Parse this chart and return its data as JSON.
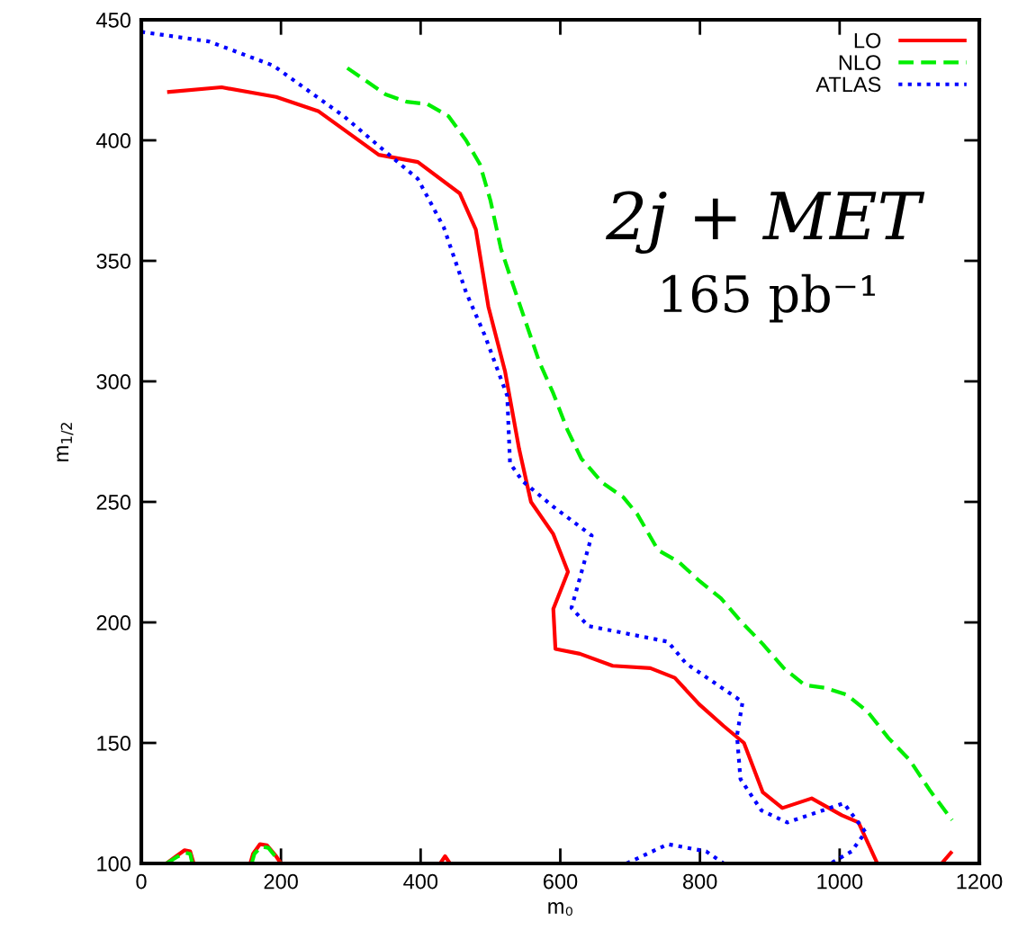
{
  "chart_data": {
    "type": "line",
    "xlabel": "m₀",
    "ylabel": "m$_{1/2}$",
    "xlim": [
      0,
      1200
    ],
    "ylim": [
      100,
      450
    ],
    "xticks": [
      0,
      200,
      400,
      600,
      800,
      1000,
      1200
    ],
    "yticks": [
      100,
      150,
      200,
      250,
      300,
      350,
      400,
      450
    ],
    "grid": false,
    "legend": "top right",
    "marker": "none",
    "annotations": [
      "2j + MET",
      "165 pb⁻¹"
    ],
    "series": [
      {
        "name": "LO",
        "color": "#ff0000",
        "line_style": "solid",
        "x": [
          37,
          115,
          193,
          254,
          340,
          396,
          456,
          479,
          497,
          521,
          541,
          558,
          590,
          611,
          590,
          593,
          628,
          675,
          729,
          764,
          799,
          834,
          863,
          890,
          918,
          960,
          1003,
          1027,
          1054,
          null,
          1146,
          1161,
          null,
          36,
          50,
          62,
          70,
          75,
          null,
          156,
          160,
          170,
          180,
          193,
          200,
          null,
          428,
          435,
          442
        ],
        "values": [
          420,
          422,
          418,
          412,
          394,
          391,
          378,
          363,
          331,
          304,
          272,
          250,
          236.6,
          221,
          205.6,
          189,
          187,
          182,
          181,
          177,
          166,
          157,
          150,
          129.5,
          123,
          127,
          120,
          117,
          100,
          null,
          100,
          105,
          null,
          100,
          103,
          105.5,
          105,
          100,
          null,
          100,
          104,
          108,
          107.5,
          103,
          100,
          null,
          100,
          103,
          100
        ]
      },
      {
        "name": "NLO",
        "color": "#00ee00",
        "line_style": "dashed",
        "x": [
          295,
          320,
          350,
          380,
          410,
          440,
          465,
          485,
          500,
          515,
          530,
          550,
          570,
          590,
          610,
          630,
          660,
          690,
          710,
          740,
          770,
          800,
          830,
          860,
          890,
          920,
          950,
          980,
          1010,
          1040,
          1070,
          1100,
          1130,
          1161,
          null,
          36,
          50,
          62,
          70,
          73,
          null,
          158,
          162,
          172,
          182,
          193,
          198
        ],
        "values": [
          430,
          425,
          419,
          416,
          415,
          410,
          400,
          390,
          375,
          355,
          342,
          325,
          308,
          295,
          280,
          268,
          258,
          252,
          245,
          230,
          225,
          217,
          210,
          200,
          191,
          181,
          174,
          172.8,
          170,
          163,
          152,
          143,
          130,
          118,
          null,
          100,
          102.5,
          104.5,
          104,
          100,
          null,
          100,
          104,
          107,
          106.5,
          102.5,
          100
        ]
      },
      {
        "name": "ATLAS",
        "color": "#0000ff",
        "line_style": "dotted",
        "x": [
          0,
          97,
          189,
          290,
          363,
          396,
          433,
          465,
          492,
          524,
          528,
          546,
          590,
          645,
          616,
          640,
          754,
          780,
          861,
          853,
          858,
          888,
          925,
          1006,
          1037,
          1017,
          987,
          null,
          695,
          754,
          809,
          834
        ],
        "values": [
          445,
          441,
          431,
          410,
          392,
          384,
          364,
          337,
          319,
          294,
          266,
          258.6,
          248,
          236,
          206,
          198.5,
          192,
          183,
          167,
          153,
          135,
          122,
          117,
          125,
          113,
          105,
          100,
          null,
          100,
          108,
          105,
          100
        ]
      }
    ]
  }
}
